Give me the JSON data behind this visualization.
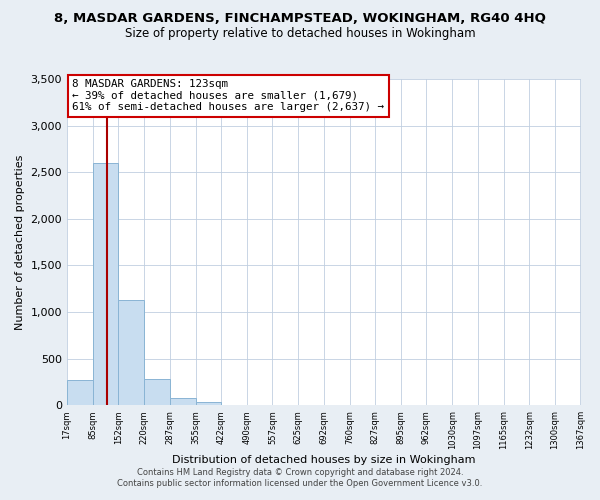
{
  "title": "8, MASDAR GARDENS, FINCHAMPSTEAD, WOKINGHAM, RG40 4HQ",
  "subtitle": "Size of property relative to detached houses in Wokingham",
  "xlabel": "Distribution of detached houses by size in Wokingham",
  "ylabel": "Number of detached properties",
  "bar_color": "#c8ddf0",
  "bar_edge_color": "#8ab4d4",
  "bins": [
    17,
    85,
    152,
    220,
    287,
    355,
    422,
    490,
    557,
    625,
    692,
    760,
    827,
    895,
    962,
    1030,
    1097,
    1165,
    1232,
    1300,
    1367
  ],
  "bin_labels": [
    "17sqm",
    "85sqm",
    "152sqm",
    "220sqm",
    "287sqm",
    "355sqm",
    "422sqm",
    "490sqm",
    "557sqm",
    "625sqm",
    "692sqm",
    "760sqm",
    "827sqm",
    "895sqm",
    "962sqm",
    "1030sqm",
    "1097sqm",
    "1165sqm",
    "1232sqm",
    "1300sqm",
    "1367sqm"
  ],
  "counts": [
    270,
    2600,
    1130,
    280,
    80,
    40,
    0,
    0,
    0,
    0,
    0,
    0,
    0,
    0,
    0,
    0,
    0,
    0,
    0,
    0
  ],
  "ylim": [
    0,
    3500
  ],
  "yticks": [
    0,
    500,
    1000,
    1500,
    2000,
    2500,
    3000,
    3500
  ],
  "property_size": 123,
  "vline_color": "#aa0000",
  "annotation_text": "8 MASDAR GARDENS: 123sqm\n← 39% of detached houses are smaller (1,679)\n61% of semi-detached houses are larger (2,637) →",
  "annotation_box_color": "#ffffff",
  "annotation_border_color": "#cc0000",
  "footer_line1": "Contains HM Land Registry data © Crown copyright and database right 2024.",
  "footer_line2": "Contains public sector information licensed under the Open Government Licence v3.0.",
  "background_color": "#e8eef4",
  "plot_bg_color": "#ffffff",
  "grid_color": "#c0cfe0"
}
